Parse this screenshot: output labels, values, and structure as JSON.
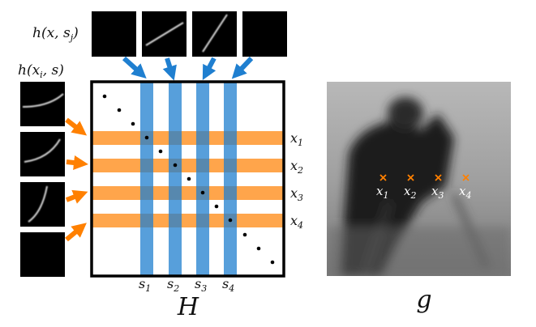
{
  "top_label": {
    "text": "h(x, s",
    "sub": "j",
    "close": ")"
  },
  "left_label": {
    "text": "h(x",
    "sub": "i",
    "close": ", s)"
  },
  "row_labels": [
    {
      "base": "x",
      "sub": "1"
    },
    {
      "base": "x",
      "sub": "2"
    },
    {
      "base": "x",
      "sub": "3"
    },
    {
      "base": "x",
      "sub": "4"
    }
  ],
  "col_labels": [
    {
      "base": "s",
      "sub": "1"
    },
    {
      "base": "s",
      "sub": "2"
    },
    {
      "base": "s",
      "sub": "3"
    },
    {
      "base": "s",
      "sub": "4"
    }
  ],
  "matrix_label": "H",
  "image_label": "g",
  "image_point_labels": [
    {
      "base": "x",
      "sub": "1"
    },
    {
      "base": "x",
      "sub": "2"
    },
    {
      "base": "x",
      "sub": "3"
    },
    {
      "base": "x",
      "sub": "4"
    }
  ]
}
